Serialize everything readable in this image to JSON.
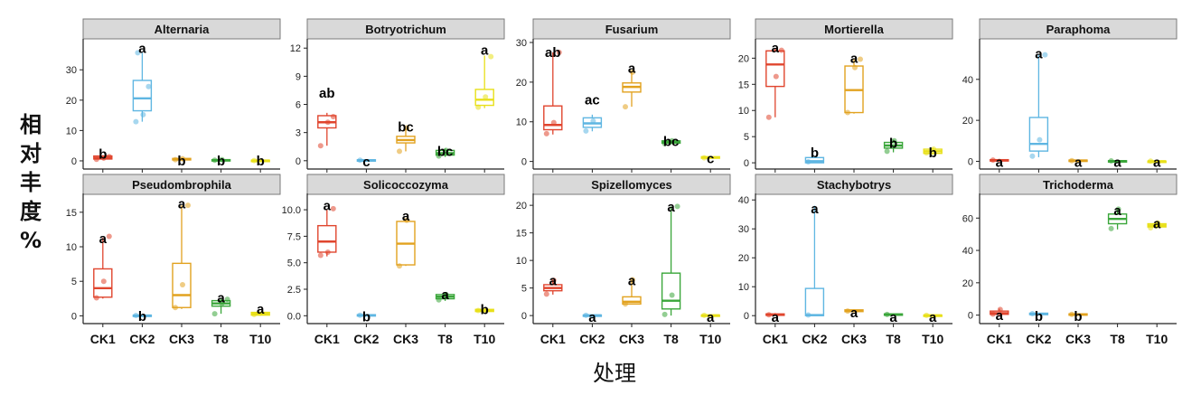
{
  "axis": {
    "ylabel": "相对丰度%",
    "xlabel": "处理"
  },
  "colors": {
    "CK1": "#e0452e",
    "CK2": "#5fb6e2",
    "CK3": "#e2a21f",
    "T8": "#3aa63a",
    "T10": "#e8e01a",
    "strip": "#d9d9d9",
    "strip_border": "#7a7a7a"
  },
  "chart_data": {
    "type": "box",
    "categories": [
      "CK1",
      "CK2",
      "CK3",
      "T8",
      "T10"
    ],
    "panels": [
      {
        "title": "Alternaria",
        "ylim": [
          -1.5,
          39
        ],
        "ticks": [
          0,
          10,
          20,
          30
        ],
        "boxes": [
          {
            "q1": 0.6,
            "median": 1.0,
            "q3": 1.6,
            "lo": 0.4,
            "hi": 1.8,
            "points": [
              0.5,
              0.9,
              1.4
            ],
            "label": "b",
            "label_y": 2.2
          },
          {
            "q1": 16.5,
            "median": 20.6,
            "q3": 26.5,
            "lo": 12.9,
            "hi": 35.6,
            "points": [
              12.9,
              15.2,
              24.5,
              35.6
            ],
            "label": "a",
            "label_y": 37
          },
          {
            "q1": 0.3,
            "median": 0.5,
            "q3": 0.8,
            "lo": 0.2,
            "hi": 1.0,
            "points": [
              0.4,
              0.7
            ],
            "label": "b",
            "label_y": 0
          },
          {
            "q1": 0.1,
            "median": 0.2,
            "q3": 0.4,
            "lo": 0.0,
            "hi": 0.5,
            "points": [
              0.2,
              0.4
            ],
            "label": "b",
            "label_y": 0
          },
          {
            "q1": 0.0,
            "median": 0.1,
            "q3": 0.2,
            "lo": 0.0,
            "hi": 0.3,
            "points": [
              0.1
            ],
            "label": "b",
            "label_y": 0
          }
        ]
      },
      {
        "title": "Botryotrichum",
        "ylim": [
          -0.5,
          12.6
        ],
        "ticks": [
          0,
          3,
          6,
          9,
          12
        ],
        "boxes": [
          {
            "q1": 3.5,
            "median": 4.1,
            "q3": 4.8,
            "lo": 1.6,
            "hi": 5.1,
            "points": [
              1.6,
              4.1,
              4.7
            ],
            "label": "ab",
            "label_y": 7.2
          },
          {
            "q1": 0.0,
            "median": 0.05,
            "q3": 0.1,
            "lo": 0.0,
            "hi": 0.15,
            "points": [
              0.05
            ],
            "label": "c",
            "label_y": -0.1
          },
          {
            "q1": 1.9,
            "median": 2.2,
            "q3": 2.6,
            "lo": 1.0,
            "hi": 3.4,
            "points": [
              1.0,
              3.5
            ],
            "label": "bc",
            "label_y": 3.6
          },
          {
            "q1": 0.6,
            "median": 0.8,
            "q3": 1.1,
            "lo": 0.4,
            "hi": 1.3,
            "points": [
              0.5,
              1.1
            ],
            "label": "bc",
            "label_y": 1.0
          },
          {
            "q1": 5.9,
            "median": 6.5,
            "q3": 7.6,
            "lo": 5.6,
            "hi": 11.2,
            "points": [
              5.7,
              6.8,
              11.1
            ],
            "label": "a",
            "label_y": 11.8
          }
        ]
      },
      {
        "title": "Fusarium",
        "ylim": [
          -1,
          30
        ],
        "ticks": [
          0,
          10,
          20,
          30
        ],
        "boxes": [
          {
            "q1": 8.0,
            "median": 9.2,
            "q3": 14.0,
            "lo": 6.8,
            "hi": 27.5,
            "points": [
              7.0,
              9.8,
              27.5
            ],
            "label": "ab",
            "label_y": 27.5
          },
          {
            "q1": 8.6,
            "median": 9.6,
            "q3": 11.0,
            "lo": 7.6,
            "hi": 11.8,
            "points": [
              7.7,
              10.2
            ],
            "label": "ac",
            "label_y": 15.5
          },
          {
            "q1": 17.5,
            "median": 18.8,
            "q3": 19.8,
            "lo": 13.8,
            "hi": 22.8,
            "points": [
              13.8,
              22.5
            ],
            "label": "a",
            "label_y": 23.5
          },
          {
            "q1": 4.6,
            "median": 4.9,
            "q3": 5.2,
            "lo": 4.3,
            "hi": 5.4,
            "points": [
              4.5,
              5.2
            ],
            "label": "bc",
            "label_y": 5.0
          },
          {
            "q1": 0.8,
            "median": 1.0,
            "q3": 1.2,
            "lo": 0.6,
            "hi": 1.4,
            "points": [
              0.9
            ],
            "label": "c",
            "label_y": 0.7
          }
        ]
      },
      {
        "title": "Mortierella",
        "ylim": [
          -0.5,
          23
        ],
        "ticks": [
          0,
          5,
          10,
          15,
          20
        ],
        "boxes": [
          {
            "q1": 14.6,
            "median": 18.8,
            "q3": 21.4,
            "lo": 8.7,
            "hi": 21.9,
            "points": [
              8.7,
              16.5,
              21.5
            ],
            "label": "a",
            "label_y": 22.0
          },
          {
            "q1": 0.0,
            "median": 0.3,
            "q3": 1.0,
            "lo": 0.0,
            "hi": 1.3,
            "points": [
              0.2
            ],
            "label": "b",
            "label_y": 1.9
          },
          {
            "q1": 9.6,
            "median": 13.9,
            "q3": 18.5,
            "lo": 9.4,
            "hi": 19.8,
            "points": [
              9.6,
              18.2,
              19.8
            ],
            "label": "a",
            "label_y": 20.0
          },
          {
            "q1": 2.8,
            "median": 3.3,
            "q3": 3.9,
            "lo": 2.0,
            "hi": 4.4,
            "points": [
              2.2,
              4.2
            ],
            "label": "b",
            "label_y": 3.7
          },
          {
            "q1": 1.8,
            "median": 2.2,
            "q3": 2.6,
            "lo": 1.5,
            "hi": 2.9,
            "points": [
              1.9,
              2.6
            ],
            "label": "b",
            "label_y": 1.9
          }
        ]
      },
      {
        "title": "Paraphoma",
        "ylim": [
          -2,
          58
        ],
        "ticks": [
          0,
          20,
          40
        ],
        "boxes": [
          {
            "q1": 0.2,
            "median": 0.5,
            "q3": 0.8,
            "lo": 0.1,
            "hi": 1.2,
            "points": [
              0.6
            ],
            "label": "a",
            "label_y": -0.5
          },
          {
            "q1": 5.0,
            "median": 8.5,
            "q3": 21.4,
            "lo": 2.0,
            "hi": 52.0,
            "points": [
              2.5,
              10.5,
              52
            ],
            "label": "a",
            "label_y": 52.5
          },
          {
            "q1": 0.2,
            "median": 0.4,
            "q3": 0.6,
            "lo": 0.1,
            "hi": 0.8,
            "points": [
              0.3
            ],
            "label": "a",
            "label_y": -0.5
          },
          {
            "q1": 0.0,
            "median": 0.1,
            "q3": 0.3,
            "lo": 0.0,
            "hi": 0.5,
            "points": [
              0.2
            ],
            "label": "a",
            "label_y": -0.5
          },
          {
            "q1": 0.0,
            "median": 0.05,
            "q3": 0.1,
            "lo": 0.0,
            "hi": 0.2,
            "points": [
              0.1
            ],
            "label": "a",
            "label_y": -0.5
          }
        ]
      },
      {
        "title": "Pseudombrophila",
        "ylim": [
          -0.6,
          17.2
        ],
        "ticks": [
          0,
          5,
          10,
          15
        ],
        "boxes": [
          {
            "q1": 2.7,
            "median": 4.0,
            "q3": 6.8,
            "lo": 2.5,
            "hi": 11.3,
            "points": [
              2.6,
              5.0,
              11.5
            ],
            "label": "a",
            "label_y": 11.2
          },
          {
            "q1": 0.0,
            "median": 0.05,
            "q3": 0.1,
            "lo": 0.0,
            "hi": 0.15,
            "points": [
              0.05
            ],
            "label": "b",
            "label_y": -0.1
          },
          {
            "q1": 1.2,
            "median": 3.0,
            "q3": 7.6,
            "lo": 1.0,
            "hi": 16.0,
            "points": [
              1.2,
              4.5,
              16.0
            ],
            "label": "a",
            "label_y": 16.2
          },
          {
            "q1": 1.4,
            "median": 1.8,
            "q3": 2.2,
            "lo": 0.3,
            "hi": 2.5,
            "points": [
              0.3,
              1.8,
              2.4
            ],
            "label": "a",
            "label_y": 2.6
          },
          {
            "q1": 0.1,
            "median": 0.3,
            "q3": 0.5,
            "lo": 0.0,
            "hi": 0.6,
            "points": [
              0.2
            ],
            "label": "a",
            "label_y": 1.0
          }
        ]
      },
      {
        "title": "Solicoccozyma",
        "ylim": [
          -0.4,
          11.2
        ],
        "ticks": [
          0.0,
          2.5,
          5.0,
          7.5,
          10.0
        ],
        "boxes": [
          {
            "q1": 6.0,
            "median": 7.0,
            "q3": 8.5,
            "lo": 5.6,
            "hi": 10.0,
            "points": [
              5.7,
              6.0,
              10.1
            ],
            "label": "a",
            "label_y": 10.4
          },
          {
            "q1": 0.0,
            "median": 0.05,
            "q3": 0.1,
            "lo": 0.0,
            "hi": 0.15,
            "points": [
              0.05
            ],
            "label": "b",
            "label_y": -0.1
          },
          {
            "q1": 4.8,
            "median": 6.8,
            "q3": 8.9,
            "lo": 4.7,
            "hi": 9.1,
            "points": [
              4.7,
              9.0
            ],
            "label": "a",
            "label_y": 9.4
          },
          {
            "q1": 1.6,
            "median": 1.8,
            "q3": 2.0,
            "lo": 1.4,
            "hi": 2.2,
            "points": [
              1.5,
              2.0
            ],
            "label": "a",
            "label_y": 2.0
          },
          {
            "q1": 0.4,
            "median": 0.5,
            "q3": 0.6,
            "lo": 0.3,
            "hi": 0.7,
            "points": [
              0.5
            ],
            "label": "b",
            "label_y": 0.6
          }
        ]
      },
      {
        "title": "Spizellomyces",
        "ylim": [
          -0.8,
          21.5
        ],
        "ticks": [
          0,
          5,
          10,
          15,
          20
        ],
        "boxes": [
          {
            "q1": 4.5,
            "median": 5.0,
            "q3": 5.6,
            "lo": 3.8,
            "hi": 6.5,
            "points": [
              3.9,
              6.4
            ],
            "label": "a",
            "label_y": 6.3
          },
          {
            "q1": 0.0,
            "median": 0.05,
            "q3": 0.1,
            "lo": 0.0,
            "hi": 0.15,
            "points": [
              0.05
            ],
            "label": "a",
            "label_y": -0.3
          },
          {
            "q1": 2.1,
            "median": 2.5,
            "q3": 3.4,
            "lo": 2.0,
            "hi": 6.5,
            "points": [
              2.1,
              6.5
            ],
            "label": "a",
            "label_y": 6.3
          },
          {
            "q1": 1.2,
            "median": 2.7,
            "q3": 7.7,
            "lo": 0.0,
            "hi": 19.8,
            "points": [
              0.2,
              3.7,
              19.8
            ],
            "label": "a",
            "label_y": 19.7
          },
          {
            "q1": 0.0,
            "median": 0.05,
            "q3": 0.1,
            "lo": 0.0,
            "hi": 0.15,
            "points": [
              0.05
            ],
            "label": "a",
            "label_y": -0.3
          }
        ]
      },
      {
        "title": "Stachybotrys",
        "ylim": [
          -1.5,
          41
        ],
        "ticks": [
          0,
          10,
          20,
          30,
          40
        ],
        "boxes": [
          {
            "q1": 0.1,
            "median": 0.3,
            "q3": 0.6,
            "lo": 0.0,
            "hi": 0.9,
            "points": [
              0.3
            ],
            "label": "a",
            "label_y": -0.6
          },
          {
            "q1": 0.0,
            "median": 0.2,
            "q3": 9.4,
            "lo": 0.0,
            "hi": 38.0,
            "points": [
              0.2
            ],
            "label": "a",
            "label_y": 37.0
          },
          {
            "q1": 1.4,
            "median": 1.7,
            "q3": 2.0,
            "lo": 1.2,
            "hi": 2.2,
            "points": [
              1.6
            ],
            "label": "a",
            "label_y": 1.0
          },
          {
            "q1": 0.2,
            "median": 0.4,
            "q3": 0.6,
            "lo": 0.0,
            "hi": 0.8,
            "points": [
              0.4
            ],
            "label": "a",
            "label_y": -0.6
          },
          {
            "q1": 0.0,
            "median": 0.1,
            "q3": 0.2,
            "lo": 0.0,
            "hi": 0.3,
            "points": [
              0.1
            ],
            "label": "a",
            "label_y": -0.6
          }
        ]
      },
      {
        "title": "Trichoderma",
        "ylim": [
          -3,
          73
        ],
        "ticks": [
          0,
          20,
          40,
          60
        ],
        "boxes": [
          {
            "q1": 0.5,
            "median": 1.2,
            "q3": 2.5,
            "lo": 0.0,
            "hi": 4.0,
            "points": [
              0.6,
              3.5
            ],
            "label": "a",
            "label_y": -0.3
          },
          {
            "q1": 0.3,
            "median": 0.7,
            "q3": 1.2,
            "lo": 0.0,
            "hi": 1.5,
            "points": [
              0.9
            ],
            "label": "b",
            "label_y": -0.9
          },
          {
            "q1": 0.1,
            "median": 0.4,
            "q3": 0.8,
            "lo": 0.0,
            "hi": 1.0,
            "points": [
              0.5
            ],
            "label": "b",
            "label_y": -0.9
          },
          {
            "q1": 56.5,
            "median": 59.5,
            "q3": 62.5,
            "lo": 53.0,
            "hi": 66.0,
            "points": [
              53.5,
              65.5
            ],
            "label": "a",
            "label_y": 64.5
          },
          {
            "q1": 54.5,
            "median": 55.5,
            "q3": 56.5,
            "lo": 53.5,
            "hi": 57.5,
            "points": [
              54.0,
              57.0
            ],
            "label": "a",
            "label_y": 56.5
          }
        ]
      }
    ]
  }
}
